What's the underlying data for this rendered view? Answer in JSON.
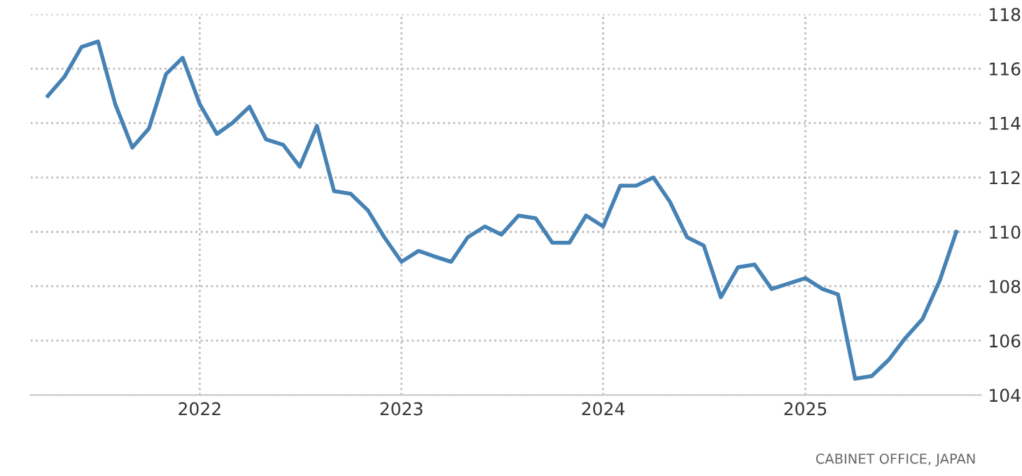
{
  "chart_data": {
    "type": "line",
    "x": [
      "2021-04",
      "2021-05",
      "2021-06",
      "2021-07",
      "2021-08",
      "2021-09",
      "2021-10",
      "2021-11",
      "2021-12",
      "2022-01",
      "2022-02",
      "2022-03",
      "2022-04",
      "2022-05",
      "2022-06",
      "2022-07",
      "2022-08",
      "2022-09",
      "2022-10",
      "2022-11",
      "2022-12",
      "2023-01",
      "2023-02",
      "2023-03",
      "2023-04",
      "2023-05",
      "2023-06",
      "2023-07",
      "2023-08",
      "2023-09",
      "2023-10",
      "2023-11",
      "2023-12",
      "2024-01",
      "2024-02",
      "2024-03",
      "2024-04",
      "2024-05",
      "2024-06",
      "2024-07",
      "2024-08",
      "2024-09",
      "2024-10",
      "2024-11",
      "2024-12",
      "2025-01",
      "2025-02",
      "2025-03",
      "2025-04",
      "2025-05",
      "2025-06",
      "2025-07",
      "2025-08",
      "2025-09",
      "2025-10"
    ],
    "series": [
      {
        "color": "#4682b4",
        "values": [
          115.0,
          115.7,
          116.8,
          117.0,
          114.7,
          113.1,
          113.8,
          115.8,
          116.4,
          114.7,
          113.6,
          114.0,
          114.6,
          113.4,
          113.2,
          112.4,
          113.9,
          111.5,
          111.4,
          110.8,
          109.8,
          108.9,
          109.3,
          109.1,
          108.9,
          109.8,
          110.2,
          109.9,
          110.6,
          110.5,
          109.6,
          109.6,
          110.6,
          110.2,
          111.7,
          111.7,
          112.0,
          111.1,
          109.8,
          109.5,
          107.6,
          108.7,
          108.8,
          107.9,
          108.1,
          108.3,
          107.9,
          107.7,
          104.6,
          104.7,
          105.3,
          106.1,
          106.8,
          108.2,
          110.0
        ]
      }
    ],
    "xlim": [
      "2021-03-01",
      "2025-11-15"
    ],
    "xticks": [
      {
        "value": "2022-01-01",
        "label": "2022"
      },
      {
        "value": "2023-01-01",
        "label": "2023"
      },
      {
        "value": "2024-01-01",
        "label": "2024"
      },
      {
        "value": "2025-01-01",
        "label": "2025"
      }
    ],
    "ylim": [
      104,
      118
    ],
    "yticks": [
      104,
      106,
      108,
      110,
      112,
      114,
      116,
      118
    ],
    "grid": true,
    "line_style": "solid",
    "marker": "none",
    "annotations": [
      "CABINET OFFICE, JAPAN"
    ]
  }
}
